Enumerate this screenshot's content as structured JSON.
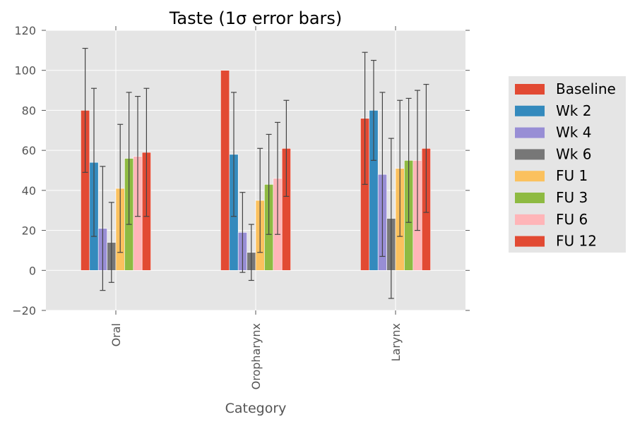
{
  "chart_data": {
    "type": "bar",
    "title": "Taste (1σ error bars)",
    "xlabel": "Category",
    "ylabel": "",
    "ylim": [
      -20,
      120
    ],
    "yticks": [
      -20,
      0,
      20,
      40,
      60,
      80,
      100,
      120
    ],
    "ytick_labels": [
      "−20",
      "0",
      "20",
      "40",
      "60",
      "80",
      "100",
      "120"
    ],
    "categories": [
      "Oral",
      "Oropharynx",
      "Larynx"
    ],
    "grid": true,
    "legend_position": "right",
    "series": [
      {
        "name": "Baseline",
        "color": "#E24A33",
        "values": [
          80,
          100,
          76
        ],
        "errors": [
          31,
          0,
          33
        ]
      },
      {
        "name": "Wk 2",
        "color": "#348ABD",
        "values": [
          54,
          58,
          80
        ],
        "errors": [
          37,
          31,
          25
        ]
      },
      {
        "name": "Wk 4",
        "color": "#988ED5",
        "values": [
          21,
          19,
          48
        ],
        "errors": [
          31,
          20,
          41
        ]
      },
      {
        "name": "Wk 6",
        "color": "#777777",
        "values": [
          14,
          9,
          26
        ],
        "errors": [
          20,
          14,
          40
        ]
      },
      {
        "name": "FU 1",
        "color": "#FBC15E",
        "values": [
          41,
          35,
          51
        ],
        "errors": [
          32,
          26,
          34
        ]
      },
      {
        "name": "FU 3",
        "color": "#8EBA42",
        "values": [
          56,
          43,
          55
        ],
        "errors": [
          33,
          25,
          31
        ]
      },
      {
        "name": "FU 6",
        "color": "#FFB5B8",
        "values": [
          57,
          46,
          55
        ],
        "errors": [
          30,
          28,
          35
        ]
      },
      {
        "name": "FU 12",
        "color": "#E24A33",
        "values": [
          59,
          61,
          61
        ],
        "errors": [
          32,
          24,
          32
        ]
      }
    ]
  }
}
